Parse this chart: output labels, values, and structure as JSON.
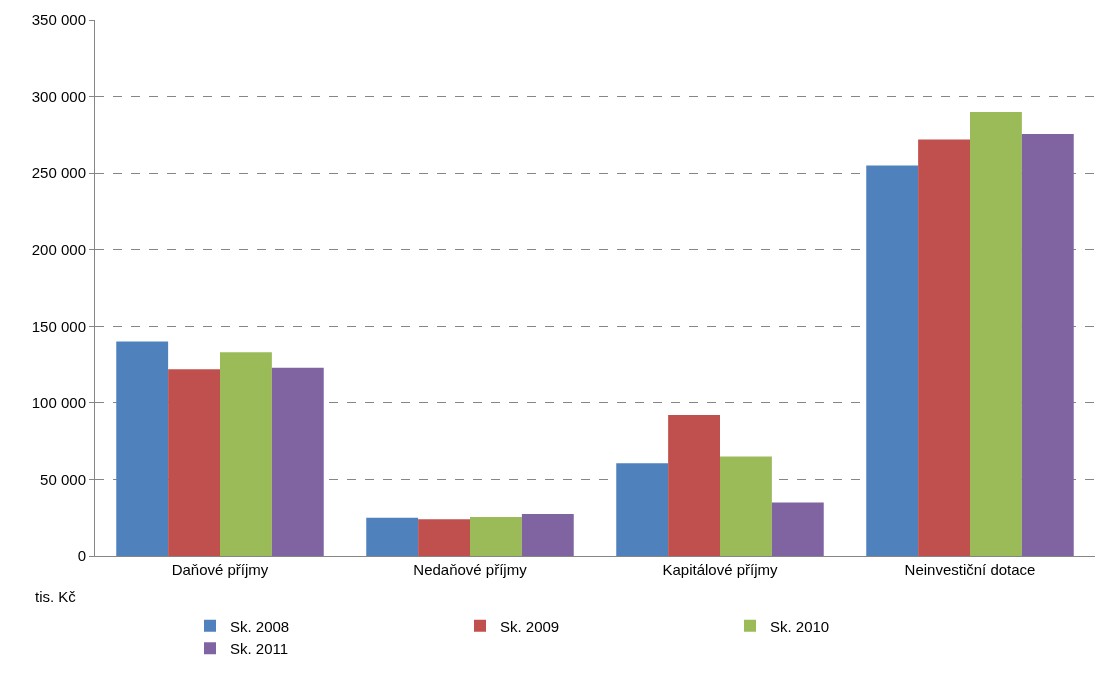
{
  "chart_data": {
    "type": "bar",
    "ylabel": "tis. Kč",
    "categories": [
      "Daňové příjmy",
      "Nedaňové příjmy",
      "Kapitálové příjmy",
      "Neinvestiční dotace"
    ],
    "series": [
      {
        "name": "Sk. 2008",
        "color": "#4f81bd",
        "values": [
          140000,
          25000,
          60500,
          255000
        ]
      },
      {
        "name": "Sk. 2009",
        "color": "#c0504d",
        "values": [
          122000,
          24000,
          92000,
          272000
        ]
      },
      {
        "name": "Sk. 2010",
        "color": "#9bbb59",
        "values": [
          133000,
          25500,
          65000,
          290000
        ]
      },
      {
        "name": "Sk. 2011",
        "color": "#8064a2",
        "values": [
          123000,
          27500,
          35000,
          275500
        ]
      }
    ],
    "ylim": [
      0,
      350000
    ],
    "yticks": [
      0,
      {
        "value": 50000,
        "label": "50 000"
      },
      {
        "value": 100000,
        "label": "100 000"
      },
      {
        "value": 150000,
        "label": "150 000"
      },
      {
        "value": 200000,
        "label": "200 000"
      },
      {
        "value": 250000,
        "label": "250 000"
      },
      {
        "value": 300000,
        "label": "300 000"
      },
      {
        "value": 350000,
        "label": "350 000"
      }
    ],
    "grid": "y",
    "legend": "bottom"
  }
}
